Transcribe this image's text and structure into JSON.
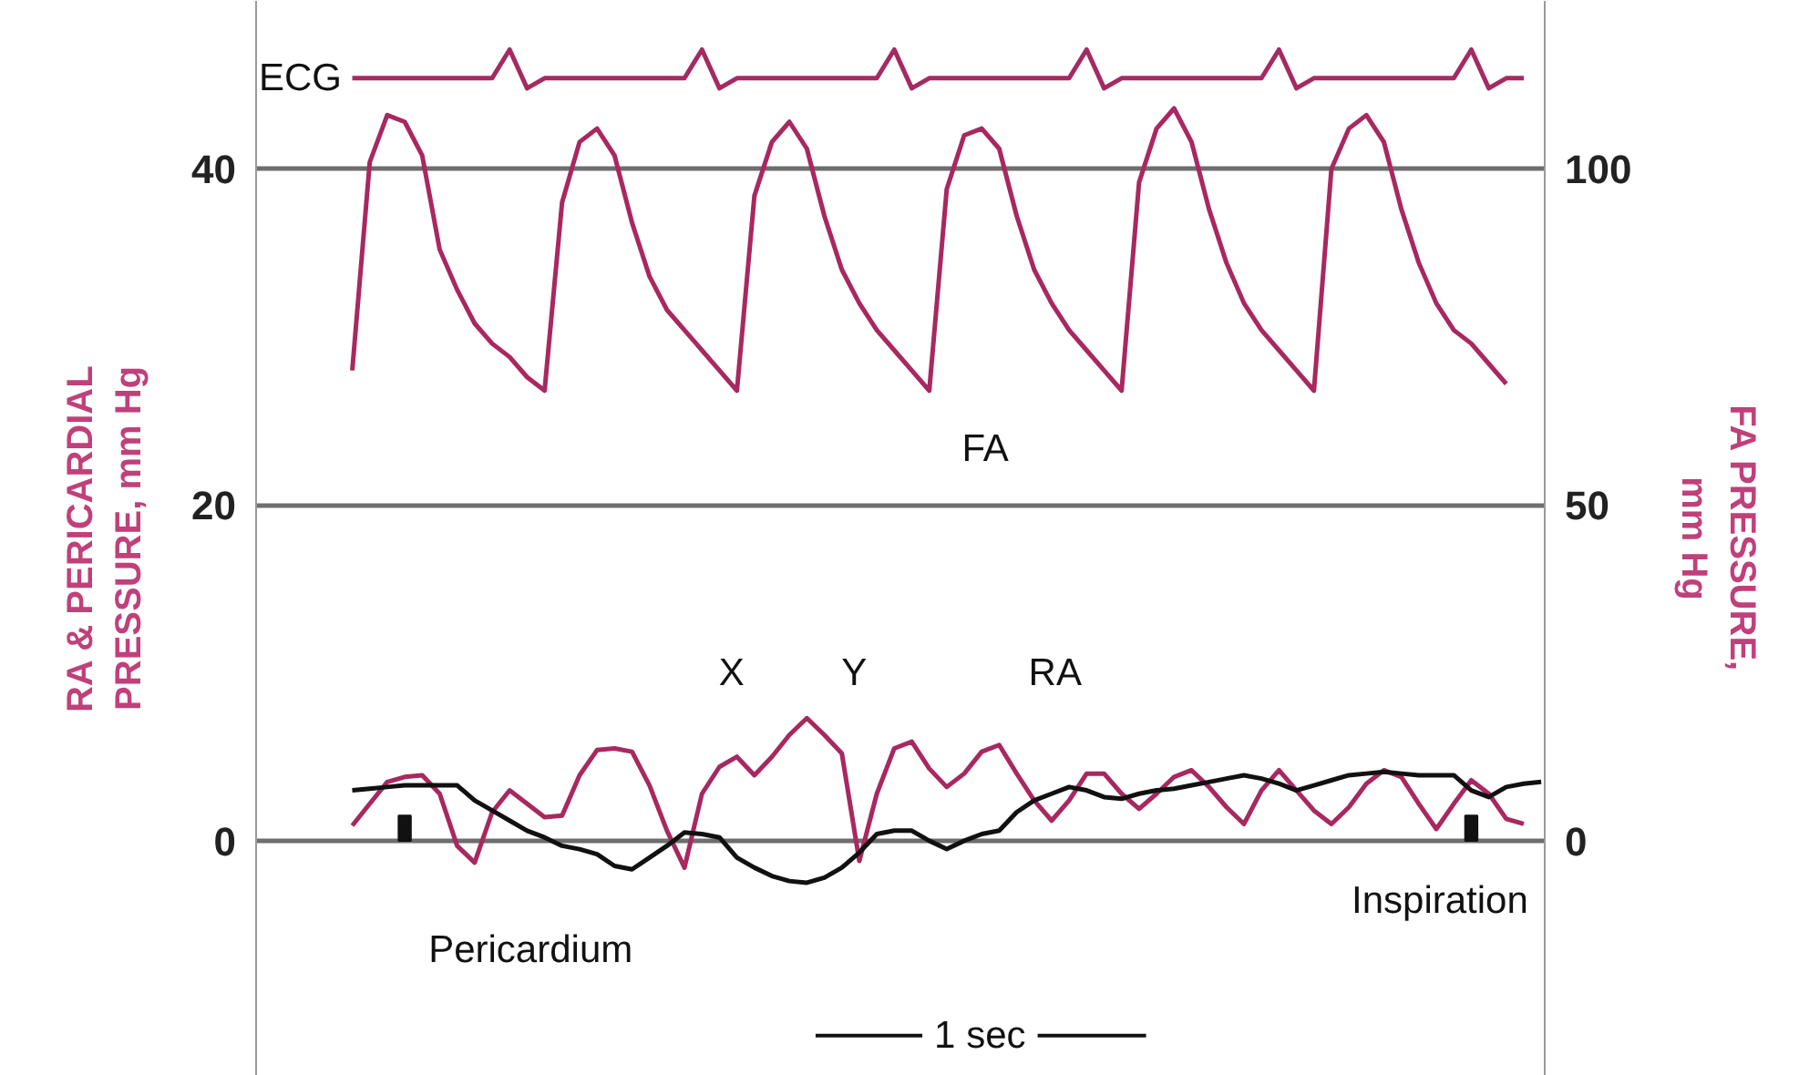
{
  "chart_data": {
    "type": "line",
    "ylabel": "RA & PERICARDIAL PRESSURE, mm Hg",
    "y2label": "FA PRESSURE, mm Hg",
    "categories": [
      null,
      null,
      null,
      null,
      null,
      null,
      null,
      null,
      null,
      null,
      null,
      null,
      null,
      null,
      null,
      null,
      null,
      null,
      null,
      null,
      null,
      null,
      null,
      null,
      null,
      null,
      null,
      null,
      null,
      null,
      null,
      null,
      null,
      null,
      null,
      null,
      null,
      null,
      null,
      null,
      null,
      null,
      null,
      null,
      null,
      null,
      null,
      null,
      null,
      null,
      null,
      null,
      null,
      null,
      null,
      null,
      null,
      null,
      null,
      null,
      null,
      null,
      null,
      null,
      null,
      null,
      null,
      null,
      null
    ],
    "ylim": [
      -14,
      50
    ],
    "yticks": [
      0,
      20,
      40
    ],
    "y2lim": [
      -35,
      125
    ],
    "y2ticks": [
      0,
      50,
      100
    ],
    "grid": "y",
    "legend": false,
    "tick_labels": "y",
    "marker": "none",
    "line_style": "solid",
    "series": [
      {
        "name": "ECG",
        "color": "#a52a62",
        "values": [
          45.4,
          45.4,
          45.4,
          45.4,
          45.4,
          45.4,
          45.4,
          45.4,
          45.4,
          47.1,
          44.8,
          45.4,
          45.4,
          45.4,
          45.4,
          45.4,
          45.4,
          45.4,
          45.4,
          45.4,
          47.1,
          44.8,
          45.4,
          45.4,
          45.4,
          45.4,
          45.4,
          45.4,
          45.4,
          45.4,
          45.4,
          47.1,
          44.8,
          45.4,
          45.4,
          45.4,
          45.4,
          45.4,
          45.4,
          45.4,
          45.4,
          45.4,
          47.1,
          44.8,
          45.4,
          45.4,
          45.4,
          45.4,
          45.4,
          45.4,
          45.4,
          45.4,
          45.4,
          47.1,
          44.8,
          45.4,
          45.4,
          45.4,
          45.4,
          45.4,
          45.4,
          45.4,
          45.4,
          45.4,
          47.1,
          44.8,
          45.4,
          45.4,
          null
        ]
      },
      {
        "name": "FA",
        "axis": "y2",
        "color": "#a8285f",
        "values": [
          70,
          101,
          108,
          107,
          102,
          88,
          82,
          77,
          74,
          72,
          69,
          67,
          95,
          104,
          106,
          102,
          92,
          84,
          79,
          76,
          73,
          70,
          67,
          96,
          104,
          107,
          103,
          93,
          85,
          80,
          76,
          73,
          70,
          67,
          97,
          105,
          106,
          103,
          93,
          85,
          80,
          76,
          73,
          70,
          67,
          98,
          106,
          109,
          104,
          94,
          86,
          80,
          76,
          73,
          70,
          67,
          100,
          106,
          108,
          104,
          94,
          86,
          80,
          76,
          74,
          71,
          68,
          null,
          null
        ]
      },
      {
        "name": "RA",
        "color": "#a8285f",
        "values": [
          0.9,
          2.2,
          3.5,
          3.8,
          3.9,
          2.8,
          -0.3,
          -1.3,
          1.7,
          3.0,
          2.2,
          1.4,
          1.5,
          3.9,
          5.4,
          5.5,
          5.3,
          3.3,
          0.6,
          -1.6,
          2.8,
          4.4,
          5.0,
          3.9,
          5.0,
          6.3,
          7.3,
          6.3,
          5.2,
          -1.2,
          2.8,
          5.5,
          5.9,
          4.3,
          3.2,
          4.0,
          5.3,
          5.7,
          4.0,
          2.4,
          1.2,
          2.4,
          4.0,
          4.0,
          2.8,
          1.9,
          2.8,
          3.8,
          4.2,
          3.2,
          2.0,
          1.0,
          3.0,
          4.2,
          3.0,
          1.8,
          1.0,
          2.0,
          3.4,
          4.2,
          3.8,
          2.2,
          0.7,
          2.2,
          3.6,
          2.8,
          1.3,
          1.0,
          null
        ]
      },
      {
        "name": "Pericardium",
        "color": "#111111",
        "values": [
          3.0,
          3.1,
          3.2,
          3.3,
          3.3,
          3.3,
          3.3,
          2.4,
          1.8,
          1.2,
          0.6,
          0.2,
          -0.3,
          -0.5,
          -0.8,
          -1.5,
          -1.7,
          -1.0,
          -0.3,
          0.5,
          0.4,
          0.2,
          -1.0,
          -1.6,
          -2.1,
          -2.4,
          -2.5,
          -2.2,
          -1.6,
          -0.7,
          0.4,
          0.6,
          0.6,
          0.0,
          -0.5,
          0.0,
          0.4,
          0.6,
          1.7,
          2.4,
          2.8,
          3.2,
          3.0,
          2.6,
          2.5,
          2.8,
          3.0,
          3.1,
          3.3,
          3.5,
          3.7,
          3.9,
          3.7,
          3.4,
          3.0,
          3.3,
          3.6,
          3.9,
          4.0,
          4.1,
          4.0,
          3.9,
          3.9,
          3.9,
          3.0,
          2.6,
          3.2,
          3.4,
          3.5
        ]
      },
      {
        "name": "Inspiration",
        "type": "bar",
        "color": "#111111",
        "values": [
          null,
          null,
          null,
          1.5,
          null,
          null,
          null,
          null,
          null,
          null,
          null,
          null,
          null,
          null,
          null,
          null,
          null,
          null,
          null,
          null,
          null,
          null,
          null,
          null,
          null,
          null,
          null,
          null,
          null,
          null,
          null,
          null,
          null,
          null,
          null,
          null,
          null,
          null,
          null,
          null,
          null,
          null,
          null,
          null,
          null,
          null,
          null,
          null,
          null,
          null,
          null,
          null,
          null,
          null,
          null,
          null,
          null,
          null,
          null,
          null,
          null,
          null,
          null,
          null,
          1.5,
          null,
          null,
          null,
          null
        ]
      }
    ],
    "annotations": [
      "X",
      "Y",
      "1 sec"
    ]
  }
}
